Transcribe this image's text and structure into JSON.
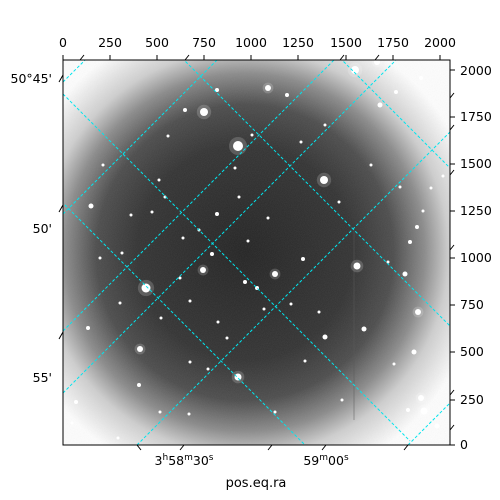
{
  "figure": {
    "xlabel": "pos.eq.ra",
    "pixel_ticks_top": [
      "0",
      "250",
      "500",
      "750",
      "1000",
      "1250",
      "1500",
      "1750",
      "2000"
    ],
    "pixel_ticks_right": [
      "0",
      "250",
      "500",
      "750",
      "1000",
      "1250",
      "1500",
      "1750",
      "2000"
    ],
    "dec_ticks_left": [
      "50°45'",
      "50'",
      "55'"
    ],
    "ra_ticks_bottom": [
      {
        "h": "3",
        "hu": "h",
        "m": "58",
        "mu": "m",
        "s": "30",
        "su": "s"
      },
      {
        "h": "",
        "hu": "",
        "m": "59",
        "mu": "m",
        "s": "00",
        "su": "s"
      }
    ],
    "grid_color": "#00e5ee",
    "background_color": "#ffffff",
    "image_type": "grayscale astronomical sky image with WCS coordinate grid"
  }
}
